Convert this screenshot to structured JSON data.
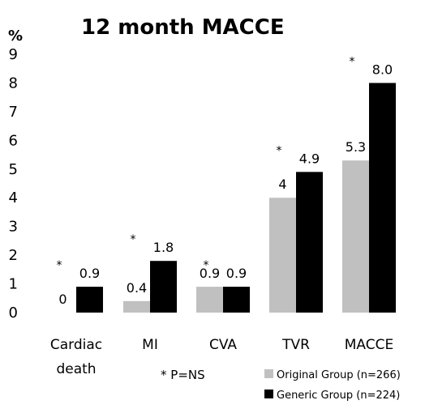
{
  "chart_data": {
    "type": "bar",
    "title": "12 month MACCE",
    "ylabel": "%",
    "ylim": [
      0,
      9
    ],
    "yticks": [
      "0",
      "1",
      "2",
      "3",
      "4",
      "5",
      "6",
      "7",
      "8",
      "9"
    ],
    "categories": [
      [
        "Cardiac",
        "death"
      ],
      [
        "MI"
      ],
      [
        "CVA"
      ],
      [
        "TVR"
      ],
      [
        "MACCE"
      ]
    ],
    "series": [
      {
        "name": "Original Group (n=266)",
        "color": "#c0c0c0",
        "values": [
          0,
          0.4,
          0.9,
          4,
          5.3
        ],
        "labels": [
          "0",
          "0.4",
          "0.9",
          "4",
          "5.3"
        ]
      },
      {
        "name": "Generic Group (n=224)",
        "color": "#000000",
        "values": [
          0.9,
          1.8,
          0.9,
          4.9,
          8.0
        ],
        "labels": [
          "0.9",
          "1.8",
          "0.9",
          "4.9",
          "8.0"
        ]
      }
    ],
    "markers": [
      "*",
      "*",
      "*",
      "*",
      "*"
    ],
    "note": "* P=NS",
    "legend_position": "bottom-right",
    "grid": false
  }
}
